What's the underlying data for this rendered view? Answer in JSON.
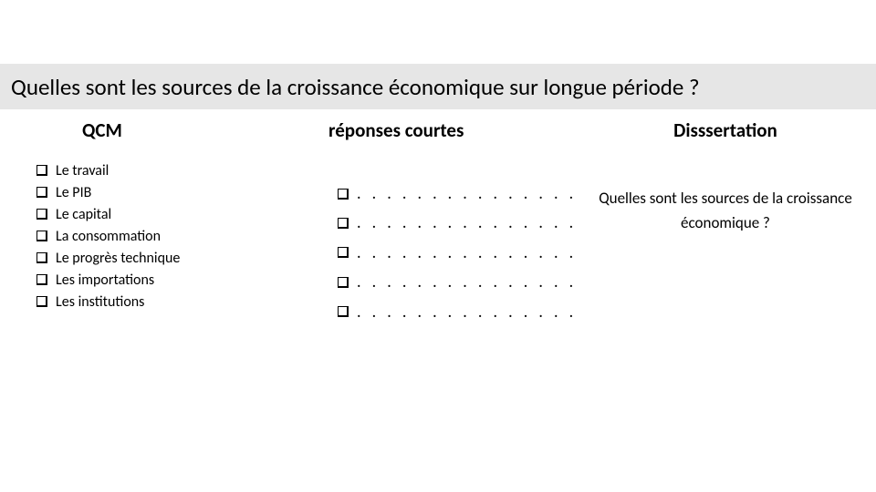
{
  "title": "Quelles sont les sources de la croissance économique sur longue période ?",
  "columns": {
    "qcm": {
      "heading": "QCM",
      "items": [
        "Le travail",
        "Le PIB",
        "Le capital",
        "La consommation",
        "Le progrès technique",
        "Les importations",
        "Les institutions"
      ]
    },
    "short": {
      "heading": "réponses courtes",
      "placeholder": ". . . . . . . . . . . . . . .",
      "count": 5
    },
    "dissertation": {
      "heading": "Disssertation",
      "prompt": "Quelles sont les sources de la croissance économique ?"
    }
  },
  "style": {
    "page_bg": "#ffffff",
    "band_bg": "#e6e6e6",
    "text_color": "#000000",
    "title_fontsize": 25,
    "heading_fontsize": 21,
    "body_fontsize": 16
  }
}
